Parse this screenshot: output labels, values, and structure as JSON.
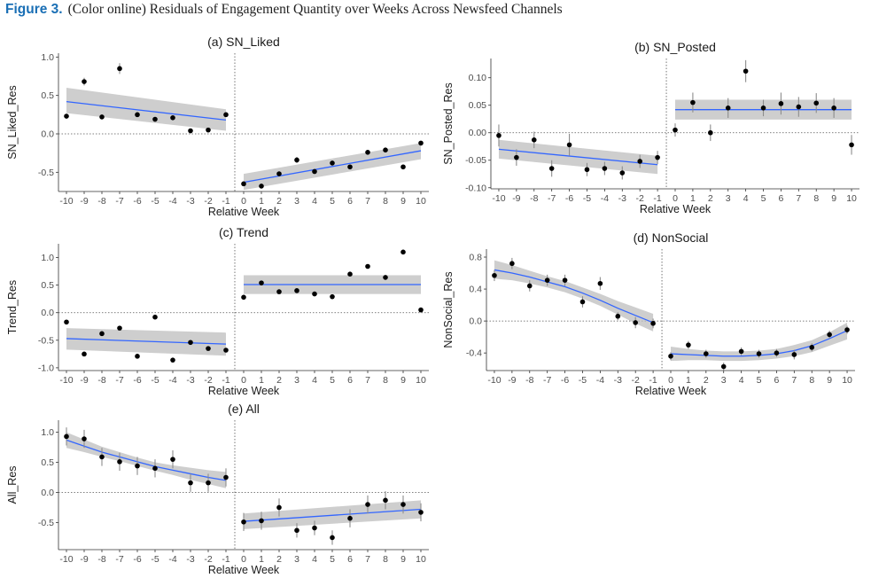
{
  "figure": {
    "label": "Figure 3.",
    "text": "(Color online) Residuals of Engagement Quantity over Weeks Across Newsfeed Channels"
  },
  "colors": {
    "fit_line": "#3366ff",
    "band": "#bdbdbd",
    "point": "#000000",
    "errorbar": "#8c8c8c"
  },
  "chart_data": [
    {
      "type": "scatter",
      "title": "(a) SN_Liked",
      "xlabel": "Relative Week",
      "ylabel": "SN_Liked_Res",
      "xlim": [
        -10,
        10
      ],
      "ylim": [
        -0.75,
        1.05
      ],
      "yticks": [
        -0.5,
        0.0,
        0.5,
        1.0
      ],
      "ytick_labels": [
        "-0.5",
        "0.0",
        "0.5",
        "1.0"
      ],
      "xticks": [
        -10,
        -9,
        -8,
        -7,
        -6,
        -5,
        -4,
        -3,
        -2,
        -1,
        0,
        1,
        2,
        3,
        4,
        5,
        6,
        7,
        8,
        9,
        10
      ],
      "x": [
        -10,
        -9,
        -8,
        -7,
        -6,
        -5,
        -4,
        -3,
        -2,
        -1,
        0,
        1,
        2,
        3,
        4,
        5,
        6,
        7,
        8,
        9,
        10
      ],
      "y": [
        0.23,
        0.68,
        0.22,
        0.85,
        0.25,
        0.19,
        0.21,
        0.04,
        0.05,
        0.25,
        -0.65,
        -0.68,
        -0.52,
        -0.34,
        -0.49,
        -0.38,
        -0.43,
        -0.24,
        -0.21,
        -0.43,
        -0.12
      ],
      "err": [
        0.03,
        0.05,
        0.03,
        0.07,
        0.03,
        0.03,
        0.03,
        0.03,
        0.03,
        0.03,
        0.03,
        0.03,
        0.03,
        0.04,
        0.03,
        0.03,
        0.03,
        0.03,
        0.03,
        0.03,
        0.03
      ],
      "fit": [
        {
          "x": [
            -10,
            -1
          ],
          "y": [
            0.42,
            0.18
          ],
          "lower": [
            0.27,
            0.04
          ],
          "upper": [
            0.6,
            0.32
          ]
        },
        {
          "x": [
            0,
            10
          ],
          "y": [
            -0.63,
            -0.22
          ],
          "lower": [
            -0.73,
            -0.33
          ],
          "upper": [
            -0.52,
            -0.12
          ]
        }
      ]
    },
    {
      "type": "scatter",
      "title": "(b) SN_Posted",
      "xlabel": "Relative Week",
      "ylabel": "SN_Posted_Res",
      "xlim": [
        -10,
        10
      ],
      "ylim": [
        -0.102,
        0.135
      ],
      "yticks": [
        -0.1,
        -0.05,
        0.0,
        0.05,
        0.1
      ],
      "ytick_labels": [
        "-0.10",
        "-0.05",
        "0.00",
        "0.05",
        "0.10"
      ],
      "xticks": [
        -10,
        -9,
        -8,
        -7,
        -6,
        -5,
        -4,
        -3,
        -2,
        -1,
        0,
        1,
        2,
        3,
        4,
        5,
        6,
        7,
        8,
        9,
        10
      ],
      "x": [
        -10,
        -9,
        -8,
        -7,
        -6,
        -5,
        -4,
        -3,
        -2,
        -1,
        0,
        1,
        2,
        3,
        4,
        5,
        6,
        7,
        8,
        9,
        10
      ],
      "y": [
        -0.005,
        -0.045,
        -0.013,
        -0.065,
        -0.022,
        -0.067,
        -0.065,
        -0.073,
        -0.052,
        -0.045,
        0.005,
        0.055,
        0.0,
        0.045,
        0.112,
        0.045,
        0.053,
        0.047,
        0.054,
        0.045,
        -0.022
      ],
      "err": [
        0.02,
        0.015,
        0.015,
        0.015,
        0.02,
        0.012,
        0.012,
        0.012,
        0.012,
        0.012,
        0.012,
        0.018,
        0.015,
        0.018,
        0.02,
        0.015,
        0.02,
        0.018,
        0.018,
        0.018,
        0.018
      ],
      "fit": [
        {
          "x": [
            -10,
            -1
          ],
          "y": [
            -0.03,
            -0.058
          ],
          "lower": [
            -0.047,
            -0.075
          ],
          "upper": [
            -0.013,
            -0.042
          ]
        },
        {
          "x": [
            0,
            10
          ],
          "y": [
            0.042,
            0.042
          ],
          "lower": [
            0.024,
            0.024
          ],
          "upper": [
            0.06,
            0.06
          ]
        }
      ]
    },
    {
      "type": "scatter",
      "title": "(c) Trend",
      "xlabel": "Relative Week",
      "ylabel": "Trend_Res",
      "xlim": [
        -10,
        10
      ],
      "ylim": [
        -1.05,
        1.25
      ],
      "yticks": [
        -1.0,
        -0.5,
        0.0,
        0.5,
        1.0
      ],
      "ytick_labels": [
        "-1.0",
        "-0.5",
        "0.0",
        "0.5",
        "1.0"
      ],
      "xticks": [
        -10,
        -9,
        -8,
        -7,
        -6,
        -5,
        -4,
        -3,
        -2,
        -1,
        0,
        1,
        2,
        3,
        4,
        5,
        6,
        7,
        8,
        9,
        10
      ],
      "x": [
        -10,
        -9,
        -8,
        -7,
        -6,
        -5,
        -4,
        -3,
        -2,
        -1,
        0,
        1,
        2,
        3,
        4,
        5,
        6,
        7,
        8,
        9,
        10
      ],
      "y": [
        -0.17,
        -0.75,
        -0.38,
        -0.28,
        -0.79,
        -0.08,
        -0.86,
        -0.54,
        -0.65,
        -0.68,
        0.28,
        0.54,
        0.38,
        0.4,
        0.34,
        0.29,
        0.7,
        0.84,
        0.64,
        1.1,
        0.05
      ],
      "err": [
        0.03,
        0.03,
        0.03,
        0.03,
        0.03,
        0.03,
        0.03,
        0.03,
        0.03,
        0.03,
        0.03,
        0.03,
        0.03,
        0.03,
        0.03,
        0.03,
        0.03,
        0.03,
        0.03,
        0.04,
        0.03
      ],
      "fit": [
        {
          "x": [
            -10,
            -1
          ],
          "y": [
            -0.47,
            -0.57
          ],
          "lower": [
            -0.67,
            -0.78
          ],
          "upper": [
            -0.28,
            -0.36
          ]
        },
        {
          "x": [
            0,
            10
          ],
          "y": [
            0.51,
            0.51
          ],
          "lower": [
            0.34,
            0.34
          ],
          "upper": [
            0.68,
            0.68
          ]
        }
      ]
    },
    {
      "type": "scatter",
      "title": "(d) NonSocial",
      "xlabel": "Relative Week",
      "ylabel": "NonSocial_Res",
      "xlim": [
        -10,
        10
      ],
      "ylim": [
        -0.62,
        0.9
      ],
      "yticks": [
        -0.4,
        0.0,
        0.4,
        0.8
      ],
      "ytick_labels": [
        "-0.4",
        "0.0",
        "0.4",
        "0.8"
      ],
      "xticks": [
        -10,
        -9,
        -8,
        -7,
        -6,
        -5,
        -4,
        -3,
        -2,
        -1,
        0,
        1,
        2,
        3,
        4,
        5,
        6,
        7,
        8,
        9,
        10
      ],
      "x": [
        -10,
        -9,
        -8,
        -7,
        -6,
        -5,
        -4,
        -3,
        -2,
        -1,
        0,
        1,
        2,
        3,
        4,
        5,
        6,
        7,
        8,
        9,
        10
      ],
      "y": [
        0.57,
        0.72,
        0.44,
        0.51,
        0.51,
        0.24,
        0.47,
        0.06,
        -0.02,
        -0.03,
        -0.44,
        -0.3,
        -0.41,
        -0.57,
        -0.38,
        -0.41,
        -0.4,
        -0.42,
        -0.33,
        -0.17,
        -0.11
      ],
      "err": [
        0.07,
        0.07,
        0.07,
        0.07,
        0.07,
        0.07,
        0.08,
        0.05,
        0.07,
        0.06,
        0.05,
        0.05,
        0.05,
        0.05,
        0.05,
        0.05,
        0.05,
        0.06,
        0.05,
        0.05,
        0.05
      ],
      "fit": [
        {
          "x": [
            -10,
            -9,
            -8,
            -7,
            -6,
            -5,
            -4,
            -3,
            -2,
            -1
          ],
          "y": [
            0.64,
            0.6,
            0.55,
            0.49,
            0.43,
            0.35,
            0.26,
            0.16,
            0.07,
            -0.02
          ],
          "lower": [
            0.53,
            0.51,
            0.47,
            0.42,
            0.36,
            0.28,
            0.19,
            0.08,
            -0.03,
            -0.13
          ],
          "upper": [
            0.76,
            0.7,
            0.63,
            0.56,
            0.5,
            0.42,
            0.34,
            0.25,
            0.17,
            0.09
          ]
        },
        {
          "x": [
            0,
            1,
            2,
            3,
            4,
            5,
            6,
            7,
            8,
            9,
            10
          ],
          "y": [
            -0.41,
            -0.42,
            -0.43,
            -0.44,
            -0.44,
            -0.43,
            -0.41,
            -0.37,
            -0.31,
            -0.22,
            -0.12
          ],
          "lower": [
            -0.5,
            -0.49,
            -0.49,
            -0.5,
            -0.5,
            -0.49,
            -0.47,
            -0.44,
            -0.39,
            -0.31,
            -0.23
          ],
          "upper": [
            -0.32,
            -0.35,
            -0.37,
            -0.38,
            -0.38,
            -0.37,
            -0.35,
            -0.3,
            -0.24,
            -0.14,
            -0.02
          ]
        }
      ]
    },
    {
      "type": "scatter",
      "title": "(e) All",
      "xlabel": "Relative Week",
      "ylabel": "All_Res",
      "xlim": [
        -10,
        10
      ],
      "ylim": [
        -0.95,
        1.2
      ],
      "yticks": [
        -0.5,
        0.0,
        0.5,
        1.0
      ],
      "ytick_labels": [
        "-0.5",
        "0.0",
        "0.5",
        "1.0"
      ],
      "xticks": [
        -10,
        -9,
        -8,
        -7,
        -6,
        -5,
        -4,
        -3,
        -2,
        -1,
        0,
        1,
        2,
        3,
        4,
        5,
        6,
        7,
        8,
        9,
        10
      ],
      "x": [
        -10,
        -9,
        -8,
        -7,
        -6,
        -5,
        -4,
        -3,
        -2,
        -1,
        0,
        1,
        2,
        3,
        4,
        5,
        6,
        7,
        8,
        9,
        10
      ],
      "y": [
        0.93,
        0.89,
        0.59,
        0.51,
        0.44,
        0.4,
        0.55,
        0.16,
        0.16,
        0.25,
        -0.49,
        -0.47,
        -0.25,
        -0.63,
        -0.59,
        -0.75,
        -0.43,
        -0.2,
        -0.13,
        -0.2,
        -0.33
      ],
      "err": [
        0.15,
        0.15,
        0.15,
        0.15,
        0.15,
        0.15,
        0.15,
        0.15,
        0.15,
        0.15,
        0.15,
        0.15,
        0.15,
        0.12,
        0.12,
        0.12,
        0.15,
        0.15,
        0.15,
        0.15,
        0.15
      ],
      "fit": [
        {
          "x": [
            -10,
            -9,
            -8,
            -7,
            -6,
            -5,
            -4,
            -3,
            -2,
            -1
          ],
          "y": [
            0.87,
            0.77,
            0.67,
            0.59,
            0.51,
            0.43,
            0.37,
            0.31,
            0.25,
            0.2
          ],
          "lower": [
            0.74,
            0.67,
            0.59,
            0.52,
            0.44,
            0.36,
            0.29,
            0.21,
            0.14,
            0.07
          ],
          "upper": [
            1.0,
            0.88,
            0.76,
            0.67,
            0.58,
            0.5,
            0.45,
            0.41,
            0.37,
            0.34
          ]
        },
        {
          "x": [
            0,
            10
          ],
          "y": [
            -0.48,
            -0.28
          ],
          "lower": [
            -0.61,
            -0.43
          ],
          "upper": [
            -0.35,
            -0.13
          ]
        }
      ]
    }
  ]
}
